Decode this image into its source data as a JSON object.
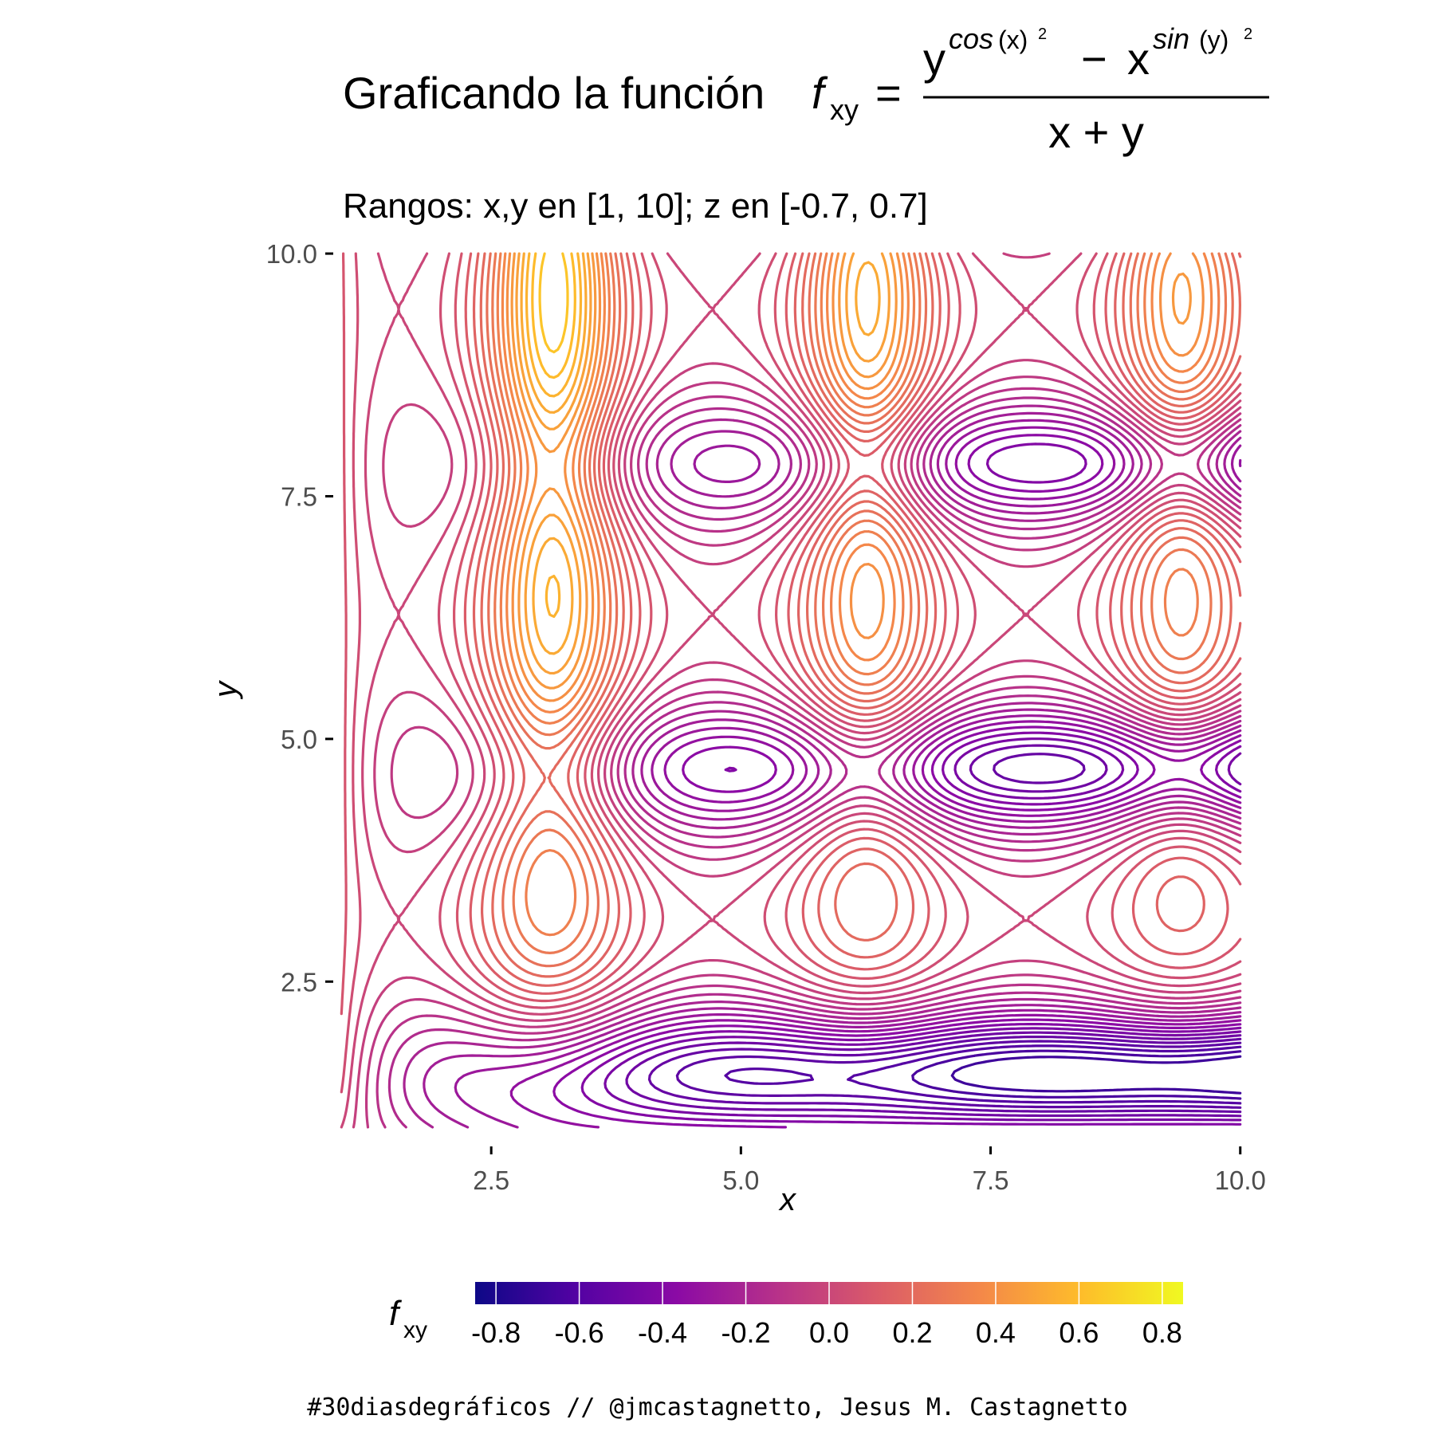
{
  "header": {
    "title_prefix": "Graficando la función",
    "title_f": "f",
    "title_sub": "xy",
    "title_eq": "=",
    "num_base_y": "y",
    "num_exp_y": "cos",
    "num_arg_x": "(x)",
    "sq": "2",
    "minus": "−",
    "num_base_x": "x",
    "num_exp_x": "sin",
    "num_arg_y": "(y)",
    "denominator": "x + y",
    "subtitle": "Rangos: x,y en [1, 10]; z en [-0.7, 0.7]"
  },
  "caption": "#30diasdegráficos // @jmcastagnetto, Jesus M. Castagnetto",
  "legend": {
    "title_f": "f",
    "title_sub": "xy",
    "position": "bottom",
    "colors": [
      "#0d0887",
      "#5302a3",
      "#8b0aa5",
      "#b83289",
      "#db5c68",
      "#f48849",
      "#febd2a",
      "#f0f921"
    ]
  },
  "chart_data": {
    "type": "contour",
    "function": "f(x,y) = (y^(cos(x)^2) - x^(sin(y)^2)) / (x + y)",
    "x_range": [
      1,
      10
    ],
    "y_range": [
      1,
      10
    ],
    "z_range": [
      -0.7,
      0.7
    ],
    "contour_step": 0.04,
    "xlabel": "x",
    "ylabel": "y",
    "xlim": [
      0.95,
      10.05
    ],
    "ylim": [
      0.95,
      10.05
    ],
    "x_ticks": [
      2.5,
      5.0,
      7.5,
      10.0
    ],
    "x_tick_labels": [
      "2.5",
      "5.0",
      "7.5",
      "10.0"
    ],
    "y_ticks": [
      2.5,
      5.0,
      7.5,
      10.0
    ],
    "y_tick_labels": [
      "2.5",
      "5.0",
      "7.5",
      "10.0"
    ],
    "grid": false,
    "colorbar": {
      "range": [
        -0.85,
        0.85
      ],
      "ticks": [
        -0.8,
        -0.6,
        -0.4,
        -0.2,
        0.0,
        0.2,
        0.4,
        0.6,
        0.8
      ],
      "tick_labels": [
        "-0.8",
        "-0.6",
        "-0.4",
        "-0.2",
        "0.0",
        "0.2",
        "0.4",
        "0.6",
        "0.8"
      ],
      "colormap": "plasma"
    }
  }
}
